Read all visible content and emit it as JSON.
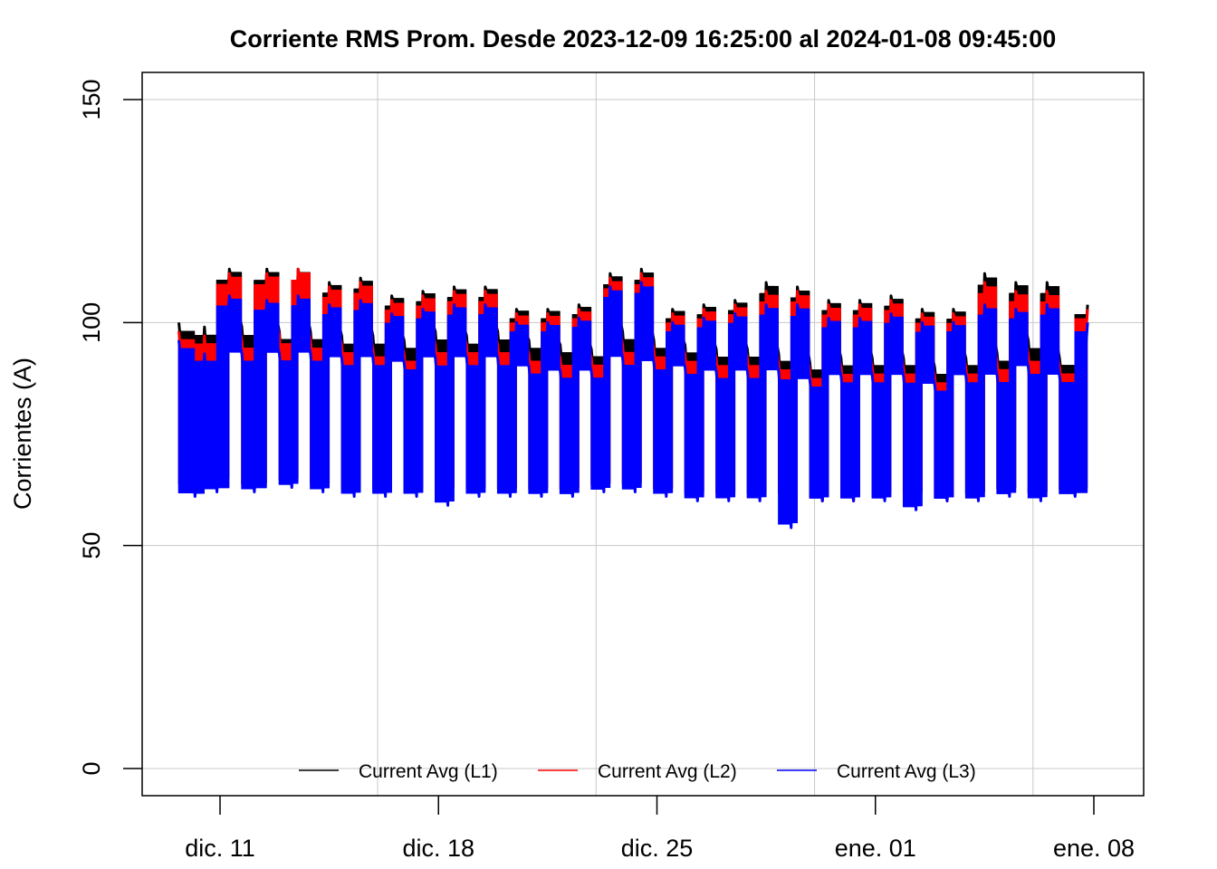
{
  "chart_data": {
    "type": "line",
    "title": "Corriente RMS Prom. Desde  2023-12-09 16:25:00  al  2024-01-08 09:45:00",
    "xlabel": "",
    "ylabel": "Corrientes (A)",
    "ylim": [
      0,
      150
    ],
    "yticks": [
      "0",
      "50",
      "100",
      "150"
    ],
    "xlim": [
      "2023-12-09 16:25",
      "2024-01-08 09:45"
    ],
    "xticks": [
      "dic. 11",
      "dic. 18",
      "dic. 25",
      "ene. 01",
      "ene. 08"
    ],
    "grid": true,
    "legend_position": "bottom",
    "x_unit": "days since 2023-12-09 00:00",
    "series": [
      {
        "name": "Current Avg (L1)",
        "color": "#000000",
        "points": [
          [
            0.68,
            100
          ],
          [
            1.2,
            63
          ],
          [
            1.5,
            99
          ],
          [
            1.9,
            64
          ],
          [
            2.3,
            112
          ],
          [
            2.7,
            99
          ],
          [
            3.1,
            63
          ],
          [
            3.5,
            112
          ],
          [
            3.9,
            98
          ],
          [
            4.3,
            64
          ],
          [
            4.5,
            112
          ],
          [
            4.9,
            98
          ],
          [
            5.3,
            63
          ],
          [
            5.5,
            109
          ],
          [
            5.9,
            97
          ],
          [
            6.3,
            62
          ],
          [
            6.5,
            110
          ],
          [
            6.9,
            97
          ],
          [
            7.3,
            62
          ],
          [
            7.5,
            106
          ],
          [
            7.9,
            96
          ],
          [
            8.3,
            62
          ],
          [
            8.5,
            107
          ],
          [
            8.9,
            98
          ],
          [
            9.3,
            62
          ],
          [
            9.5,
            108
          ],
          [
            9.9,
            97
          ],
          [
            10.3,
            62
          ],
          [
            10.5,
            108
          ],
          [
            10.9,
            98
          ],
          [
            11.3,
            62
          ],
          [
            11.5,
            103
          ],
          [
            11.9,
            96
          ],
          [
            12.3,
            62
          ],
          [
            12.5,
            103
          ],
          [
            12.9,
            95
          ],
          [
            13.3,
            62
          ],
          [
            13.5,
            104
          ],
          [
            13.9,
            94
          ],
          [
            14.3,
            63
          ],
          [
            14.5,
            111
          ],
          [
            14.9,
            98
          ],
          [
            15.3,
            63
          ],
          [
            15.5,
            112
          ],
          [
            15.9,
            96
          ],
          [
            16.3,
            62
          ],
          [
            16.5,
            103
          ],
          [
            16.9,
            95
          ],
          [
            17.3,
            61
          ],
          [
            17.5,
            104
          ],
          [
            17.9,
            94
          ],
          [
            18.3,
            61
          ],
          [
            18.5,
            105
          ],
          [
            18.9,
            94
          ],
          [
            19.3,
            61
          ],
          [
            19.5,
            109
          ],
          [
            19.9,
            93
          ],
          [
            20.3,
            61
          ],
          [
            20.5,
            108
          ],
          [
            20.9,
            91
          ],
          [
            21.3,
            60
          ],
          [
            21.5,
            105
          ],
          [
            21.9,
            92
          ],
          [
            22.3,
            60
          ],
          [
            22.5,
            105
          ],
          [
            22.9,
            92
          ],
          [
            23.3,
            61
          ],
          [
            23.5,
            106
          ],
          [
            23.9,
            92
          ],
          [
            24.3,
            61
          ],
          [
            24.5,
            103
          ],
          [
            24.9,
            90
          ],
          [
            25.3,
            60
          ],
          [
            25.5,
            103
          ],
          [
            25.9,
            92
          ],
          [
            26.3,
            61
          ],
          [
            26.5,
            111
          ],
          [
            26.9,
            93
          ],
          [
            27.3,
            62
          ],
          [
            27.5,
            109
          ],
          [
            27.9,
            96
          ],
          [
            28.3,
            61
          ],
          [
            28.5,
            109
          ],
          [
            28.9,
            92
          ],
          [
            29.4,
            62
          ],
          [
            29.8,
            104
          ]
        ]
      },
      {
        "name": "Current Avg (L2)",
        "color": "#ff0000",
        "points": [
          [
            0.68,
            98
          ],
          [
            1.2,
            63
          ],
          [
            1.5,
            97
          ],
          [
            1.9,
            64
          ],
          [
            2.3,
            111
          ],
          [
            2.7,
            96
          ],
          [
            3.1,
            63
          ],
          [
            3.5,
            111
          ],
          [
            3.9,
            97
          ],
          [
            4.3,
            64
          ],
          [
            4.5,
            112
          ],
          [
            4.9,
            96
          ],
          [
            5.3,
            63
          ],
          [
            5.5,
            108
          ],
          [
            5.9,
            95
          ],
          [
            6.3,
            62
          ],
          [
            6.5,
            109
          ],
          [
            6.9,
            94
          ],
          [
            7.3,
            62
          ],
          [
            7.5,
            105
          ],
          [
            7.9,
            93
          ],
          [
            8.3,
            62
          ],
          [
            8.5,
            106
          ],
          [
            8.9,
            95
          ],
          [
            9.3,
            62
          ],
          [
            9.5,
            107
          ],
          [
            9.9,
            95
          ],
          [
            10.3,
            62
          ],
          [
            10.5,
            107
          ],
          [
            10.9,
            95
          ],
          [
            11.3,
            62
          ],
          [
            11.5,
            102
          ],
          [
            11.9,
            93
          ],
          [
            12.3,
            62
          ],
          [
            12.5,
            102
          ],
          [
            12.9,
            92
          ],
          [
            13.3,
            62
          ],
          [
            13.5,
            103
          ],
          [
            13.9,
            92
          ],
          [
            14.3,
            63
          ],
          [
            14.5,
            110
          ],
          [
            14.9,
            95
          ],
          [
            15.3,
            63
          ],
          [
            15.5,
            111
          ],
          [
            15.9,
            94
          ],
          [
            16.3,
            62
          ],
          [
            16.5,
            102
          ],
          [
            16.9,
            93
          ],
          [
            17.3,
            61
          ],
          [
            17.5,
            103
          ],
          [
            17.9,
            92
          ],
          [
            18.3,
            61
          ],
          [
            18.5,
            104
          ],
          [
            18.9,
            92
          ],
          [
            19.3,
            61
          ],
          [
            19.5,
            107
          ],
          [
            19.9,
            91
          ],
          [
            20.3,
            61
          ],
          [
            20.5,
            107
          ],
          [
            20.9,
            89
          ],
          [
            21.3,
            60
          ],
          [
            21.5,
            104
          ],
          [
            21.9,
            90
          ],
          [
            22.3,
            60
          ],
          [
            22.5,
            104
          ],
          [
            22.9,
            90
          ],
          [
            23.3,
            61
          ],
          [
            23.5,
            105
          ],
          [
            23.9,
            90
          ],
          [
            24.3,
            61
          ],
          [
            24.5,
            102
          ],
          [
            24.9,
            88
          ],
          [
            25.3,
            60
          ],
          [
            25.5,
            102
          ],
          [
            25.9,
            90
          ],
          [
            26.3,
            61
          ],
          [
            26.5,
            109
          ],
          [
            26.9,
            91
          ],
          [
            27.3,
            62
          ],
          [
            27.5,
            107
          ],
          [
            27.9,
            93
          ],
          [
            28.3,
            61
          ],
          [
            28.5,
            107
          ],
          [
            28.9,
            90
          ],
          [
            29.4,
            62
          ],
          [
            29.8,
            103
          ]
        ]
      },
      {
        "name": "Current Avg (L3)",
        "color": "#0000ff",
        "points": [
          [
            0.68,
            96
          ],
          [
            1.2,
            61
          ],
          [
            1.5,
            93
          ],
          [
            1.9,
            62
          ],
          [
            2.3,
            106
          ],
          [
            2.7,
            93
          ],
          [
            3.1,
            62
          ],
          [
            3.5,
            105
          ],
          [
            3.9,
            93
          ],
          [
            4.3,
            63
          ],
          [
            4.5,
            106
          ],
          [
            4.9,
            93
          ],
          [
            5.3,
            62
          ],
          [
            5.5,
            104
          ],
          [
            5.9,
            92
          ],
          [
            6.3,
            61
          ],
          [
            6.5,
            105
          ],
          [
            6.9,
            92
          ],
          [
            7.3,
            61
          ],
          [
            7.5,
            102
          ],
          [
            7.9,
            91
          ],
          [
            8.3,
            61
          ],
          [
            8.5,
            103
          ],
          [
            8.9,
            92
          ],
          [
            9.3,
            59
          ],
          [
            9.5,
            104
          ],
          [
            9.9,
            92
          ],
          [
            10.3,
            61
          ],
          [
            10.5,
            104
          ],
          [
            10.9,
            92
          ],
          [
            11.3,
            61
          ],
          [
            11.5,
            100
          ],
          [
            11.9,
            90
          ],
          [
            12.3,
            61
          ],
          [
            12.5,
            100
          ],
          [
            12.9,
            89
          ],
          [
            13.3,
            61
          ],
          [
            13.5,
            101
          ],
          [
            13.9,
            89
          ],
          [
            14.3,
            62
          ],
          [
            14.5,
            108
          ],
          [
            14.9,
            92
          ],
          [
            15.3,
            62
          ],
          [
            15.5,
            109
          ],
          [
            15.9,
            91
          ],
          [
            16.3,
            61
          ],
          [
            16.5,
            100
          ],
          [
            16.9,
            90
          ],
          [
            17.3,
            60
          ],
          [
            17.5,
            101
          ],
          [
            17.9,
            89
          ],
          [
            18.3,
            60
          ],
          [
            18.5,
            102
          ],
          [
            18.9,
            89
          ],
          [
            19.3,
            60
          ],
          [
            19.5,
            104
          ],
          [
            19.9,
            89
          ],
          [
            20.3,
            54
          ],
          [
            20.5,
            104
          ],
          [
            20.9,
            87
          ],
          [
            21.3,
            60
          ],
          [
            21.5,
            101
          ],
          [
            21.9,
            88
          ],
          [
            22.3,
            60
          ],
          [
            22.5,
            101
          ],
          [
            22.9,
            88
          ],
          [
            23.3,
            60
          ],
          [
            23.5,
            102
          ],
          [
            23.9,
            88
          ],
          [
            24.3,
            58
          ],
          [
            24.5,
            100
          ],
          [
            24.9,
            86
          ],
          [
            25.3,
            60
          ],
          [
            25.5,
            100
          ],
          [
            25.9,
            88
          ],
          [
            26.3,
            60
          ],
          [
            26.5,
            104
          ],
          [
            26.9,
            88
          ],
          [
            27.3,
            61
          ],
          [
            27.5,
            103
          ],
          [
            27.9,
            90
          ],
          [
            28.3,
            60
          ],
          [
            28.5,
            104
          ],
          [
            28.9,
            88
          ],
          [
            29.4,
            61
          ],
          [
            29.8,
            100
          ]
        ]
      }
    ]
  }
}
